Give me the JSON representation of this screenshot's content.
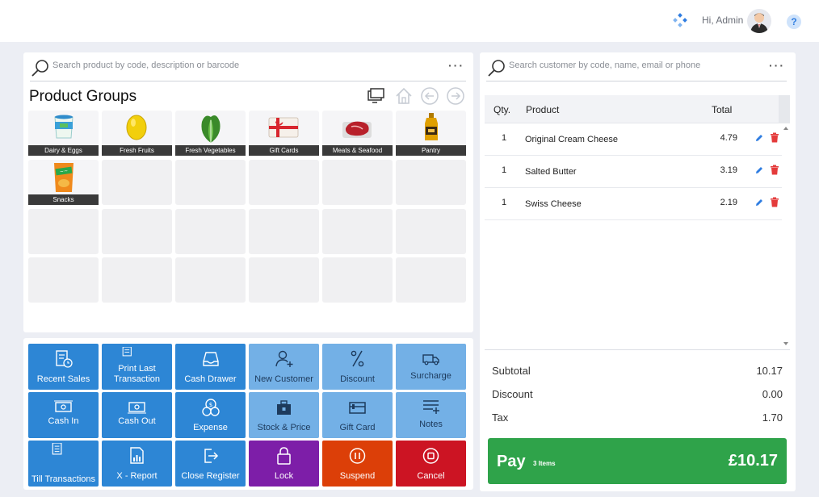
{
  "header": {
    "greeting": "Hi, Admin",
    "help_label": "?"
  },
  "product_search": {
    "placeholder": "Search product by code, description or barcode",
    "menu": "···"
  },
  "customer_search": {
    "placeholder": "Search customer by code, name, email or phone",
    "menu": "···"
  },
  "product_groups": {
    "title": "Product Groups",
    "groups": [
      {
        "label": "Dairy & Eggs",
        "icon": "yogurt-tub-icon"
      },
      {
        "label": "Fresh Fruits",
        "icon": "lemon-icon"
      },
      {
        "label": "Fresh Vegetables",
        "icon": "lettuce-icon"
      },
      {
        "label": "Gift Cards",
        "icon": "gift-card-icon"
      },
      {
        "label": "Meats & Seafood",
        "icon": "steak-icon"
      },
      {
        "label": "Pantry",
        "icon": "mustard-bottle-icon"
      },
      {
        "label": "Snacks",
        "icon": "chips-bag-icon"
      }
    ]
  },
  "actions": [
    {
      "label": "Recent Sales",
      "icon": "receipt-clock-icon",
      "color": "#2d86d5"
    },
    {
      "label": "Print Last Transaction",
      "icon": "print-receipt-icon",
      "color": "#2d86d5"
    },
    {
      "label": "Cash Drawer",
      "icon": "inbox-tray-icon",
      "color": "#2d86d5"
    },
    {
      "label": "New Customer",
      "icon": "add-user-icon",
      "color": "#73b0e6"
    },
    {
      "label": "Discount",
      "icon": "percent-icon",
      "color": "#73b0e6"
    },
    {
      "label": "Surcharge",
      "icon": "truck-icon",
      "color": "#73b0e6"
    },
    {
      "label": "Cash In",
      "icon": "banknote-in-icon",
      "color": "#2d86d5"
    },
    {
      "label": "Cash Out",
      "icon": "banknote-out-icon",
      "color": "#2d86d5"
    },
    {
      "label": "Expense",
      "icon": "coins-icon",
      "color": "#2d86d5"
    },
    {
      "label": "Stock & Price",
      "icon": "briefcase-icon",
      "color": "#73b0e6"
    },
    {
      "label": "Gift Card",
      "icon": "card-icon",
      "color": "#73b0e6"
    },
    {
      "label": "Notes",
      "icon": "notes-list-icon",
      "color": "#73b0e6"
    },
    {
      "label": "Till Transactions",
      "icon": "till-list-icon",
      "color": "#2d86d5"
    },
    {
      "label": "X - Report",
      "icon": "report-chart-icon",
      "color": "#2d86d5"
    },
    {
      "label": "Close Register",
      "icon": "exit-icon",
      "color": "#2d86d5"
    },
    {
      "label": "Lock",
      "icon": "lock-icon",
      "color": "#7d1ea8"
    },
    {
      "label": "Suspend",
      "icon": "pause-icon",
      "color": "#dc3f08"
    },
    {
      "label": "Cancel",
      "icon": "stop-icon",
      "color": "#cc1423"
    }
  ],
  "cart": {
    "headers": {
      "qty": "Qty.",
      "product": "Product",
      "total": "Total"
    },
    "items": [
      {
        "qty": "1",
        "product": "Original Cream Cheese",
        "total": "4.79"
      },
      {
        "qty": "1",
        "product": "Salted Butter",
        "total": "3.19"
      },
      {
        "qty": "1",
        "product": "Swiss Cheese",
        "total": "2.19"
      }
    ]
  },
  "summary": {
    "subtotal_label": "Subtotal",
    "subtotal": "10.17",
    "discount_label": "Discount",
    "discount": "0.00",
    "tax_label": "Tax",
    "tax": "1.70"
  },
  "pay": {
    "label": "Pay",
    "items": "3 Items",
    "total": "£10.17"
  }
}
